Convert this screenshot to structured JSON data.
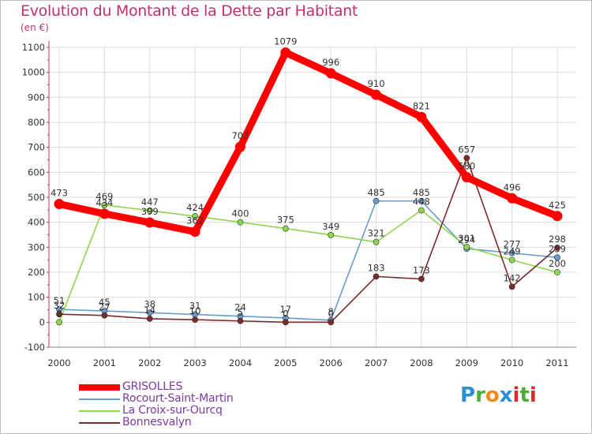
{
  "title": "Evolution du Montant de la Dette par Habitant",
  "subtitle": "(en €)",
  "brand": "Proxiti",
  "chart_data": {
    "type": "line",
    "title": "Evolution du Montant de la Dette par Habitant",
    "ylabel": "(en €)",
    "x": [
      "2000",
      "2001",
      "2002",
      "2003",
      "2004",
      "2005",
      "2006",
      "2007",
      "2008",
      "2009",
      "2010",
      "2011"
    ],
    "yticks": [
      "-100",
      "0",
      "100",
      "200",
      "300",
      "400",
      "500",
      "600",
      "700",
      "800",
      "900",
      "1000",
      "1100"
    ],
    "ylim": [
      -100,
      1100
    ],
    "grid": true,
    "series": [
      {
        "name": "GRISOLLES",
        "color": "#ff0000",
        "values": [
          473,
          434,
          399,
          362,
          702,
          1079,
          996,
          910,
          821,
          580,
          496,
          425
        ]
      },
      {
        "name": "Rocourt-Saint-Martin",
        "color": "#6a9bcf",
        "values": [
          51,
          45,
          38,
          31,
          24,
          17,
          8,
          485,
          485,
          294,
          277,
          259
        ]
      },
      {
        "name": "La Croix-sur-Ourcq",
        "color": "#8fd64f",
        "values": [
          0,
          469,
          447,
          424,
          400,
          375,
          349,
          321,
          448,
          301,
          249,
          200
        ]
      },
      {
        "name": "Bonnesvalyn",
        "color": "#7a2a2a",
        "values": [
          32,
          27,
          14,
          10,
          5,
          0,
          0,
          183,
          173,
          657,
          142,
          298
        ]
      }
    ]
  }
}
